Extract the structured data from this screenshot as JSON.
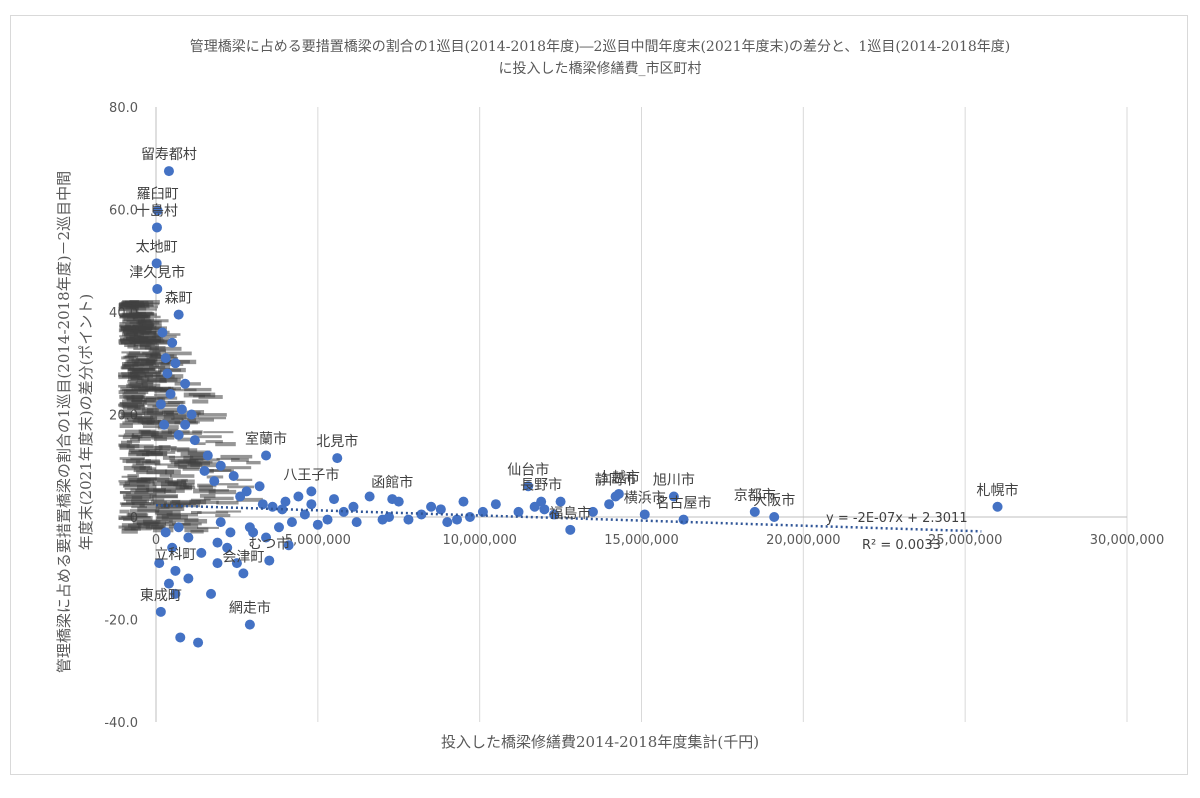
{
  "chart_data": {
    "type": "scatter",
    "title_lines": [
      "管理橋梁に占める要措置橋梁の割合の1巡目(2014-2018年度)―2巡目中間年度末(2021年度末)の差分と、1巡目(2014-2018年度)",
      "に投入した橋梁修繕費_市区町村"
    ],
    "xlabel": "投入した橋梁修繕費2014-2018年度集計(千円)",
    "ylabel_lines": [
      "管理橋梁に占める要措置橋梁の割合の1巡目(2014-2018年度)－2巡目中間",
      "年度末(2021年度末)の差分(ポイント)"
    ],
    "xlim": [
      0,
      30000000
    ],
    "ylim": [
      -40,
      80
    ],
    "x_ticks": [
      "0",
      "5,000,000",
      "10,000,000",
      "15,000,000",
      "20,000,000",
      "25,000,000",
      "30,000,000"
    ],
    "y_ticks": [
      "80.0",
      "60.0",
      "40.0",
      "20.0",
      "0",
      "-20.0",
      "-40.0"
    ],
    "grid": "vertical",
    "marker_color": "#4472c4",
    "trendline": {
      "type": "linear",
      "slope": -2e-07,
      "intercept": 2.3011,
      "equation": "y = -2E-07x + 2.3011",
      "r_squared": "R² = 0.0033",
      "color": "#2f5597",
      "style": "dotted"
    },
    "labeled_points": [
      {
        "label": "留寿都村",
        "x": 400000,
        "y": 67.5
      },
      {
        "label": "羅臼町",
        "x": 50000,
        "y": 59.8
      },
      {
        "label": "十島村",
        "x": 30000,
        "y": 56.5
      },
      {
        "label": "太地町",
        "x": 20000,
        "y": 49.5
      },
      {
        "label": "津久見市",
        "x": 40000,
        "y": 44.5
      },
      {
        "label": "森町",
        "x": 700000,
        "y": 39.5
      },
      {
        "label": "室蘭市",
        "x": 3400000,
        "y": 12.0
      },
      {
        "label": "北見市",
        "x": 5600000,
        "y": 11.5
      },
      {
        "label": "八王子市",
        "x": 4800000,
        "y": 5.0
      },
      {
        "label": "函館市",
        "x": 7300000,
        "y": 3.5
      },
      {
        "label": "仙台市",
        "x": 11500000,
        "y": 6.0
      },
      {
        "label": "長野市",
        "x": 11900000,
        "y": 3.0
      },
      {
        "label": "静岡市",
        "x": 14200000,
        "y": 4.0
      },
      {
        "label": "上越市",
        "x": 14300000,
        "y": 4.5
      },
      {
        "label": "旭川市",
        "x": 16000000,
        "y": 4.0
      },
      {
        "label": "横浜市",
        "x": 15100000,
        "y": 0.5
      },
      {
        "label": "名古屋市",
        "x": 16300000,
        "y": -0.5
      },
      {
        "label": "京都市",
        "x": 18500000,
        "y": 1.0
      },
      {
        "label": "大阪市",
        "x": 19100000,
        "y": 0.0
      },
      {
        "label": "札幌市",
        "x": 26000000,
        "y": 2.0
      },
      {
        "label": "福島市",
        "x": 12800000,
        "y": -2.5
      },
      {
        "label": "むつ市",
        "x": 3500000,
        "y": -8.5
      },
      {
        "label": "会津町",
        "x": 2700000,
        "y": -11.0
      },
      {
        "label": "立科町",
        "x": 600000,
        "y": -10.5
      },
      {
        "label": "網走市",
        "x": 2900000,
        "y": -21.0
      },
      {
        "label": "東成町",
        "x": 150000,
        "y": -18.5
      }
    ],
    "other_points": [
      [
        1700000,
        -15
      ],
      [
        1300000,
        -24.5
      ],
      [
        750000,
        -23.5
      ],
      [
        2500000,
        -9
      ],
      [
        1900000,
        -5
      ],
      [
        2200000,
        -6
      ],
      [
        1000000,
        -4
      ],
      [
        3000000,
        -3
      ],
      [
        3800000,
        -2
      ],
      [
        4200000,
        -1
      ],
      [
        4600000,
        0.5
      ],
      [
        5000000,
        -1.5
      ],
      [
        5300000,
        -0.5
      ],
      [
        5800000,
        1
      ],
      [
        6200000,
        -1
      ],
      [
        7000000,
        -0.5
      ],
      [
        7200000,
        0
      ],
      [
        7800000,
        -0.5
      ],
      [
        8200000,
        0.5
      ],
      [
        9000000,
        -1
      ],
      [
        9300000,
        -0.5
      ],
      [
        9700000,
        0
      ],
      [
        10100000,
        1
      ],
      [
        12000000,
        1.5
      ],
      [
        12300000,
        0.5
      ],
      [
        11700000,
        2
      ],
      [
        12500000,
        3
      ],
      [
        14000000,
        2.5
      ],
      [
        13500000,
        1
      ],
      [
        3600000,
        2
      ],
      [
        4000000,
        3
      ],
      [
        4400000,
        4
      ],
      [
        2800000,
        5
      ],
      [
        3200000,
        6
      ],
      [
        2400000,
        8
      ],
      [
        2000000,
        10
      ],
      [
        1600000,
        12
      ],
      [
        1200000,
        15
      ],
      [
        900000,
        18
      ],
      [
        800000,
        21
      ],
      [
        1100000,
        20
      ],
      [
        900000,
        26
      ],
      [
        600000,
        30
      ],
      [
        500000,
        34
      ],
      [
        300000,
        31
      ],
      [
        200000,
        36
      ],
      [
        350000,
        28
      ],
      [
        450000,
        24
      ],
      [
        150000,
        22
      ],
      [
        250000,
        18
      ],
      [
        700000,
        16
      ],
      [
        1500000,
        9
      ],
      [
        1800000,
        7
      ],
      [
        2600000,
        4
      ],
      [
        3300000,
        2.5
      ],
      [
        3900000,
        1.5
      ],
      [
        4800000,
        2.5
      ],
      [
        5500000,
        3.5
      ],
      [
        6100000,
        2
      ],
      [
        6600000,
        4
      ],
      [
        7500000,
        3
      ],
      [
        8500000,
        2
      ],
      [
        8800000,
        1.5
      ],
      [
        9500000,
        3
      ],
      [
        10500000,
        2.5
      ],
      [
        11200000,
        1
      ],
      [
        700000,
        -2
      ],
      [
        1400000,
        -7
      ],
      [
        1900000,
        -9
      ],
      [
        2300000,
        -3
      ],
      [
        3400000,
        -4
      ],
      [
        4100000,
        -5.5
      ],
      [
        2000000,
        -1
      ],
      [
        2900000,
        -2
      ],
      [
        500000,
        -6
      ],
      [
        300000,
        -3
      ],
      [
        400000,
        -13
      ],
      [
        1000000,
        -12
      ],
      [
        100000,
        -9
      ],
      [
        600000,
        -15
      ]
    ]
  }
}
